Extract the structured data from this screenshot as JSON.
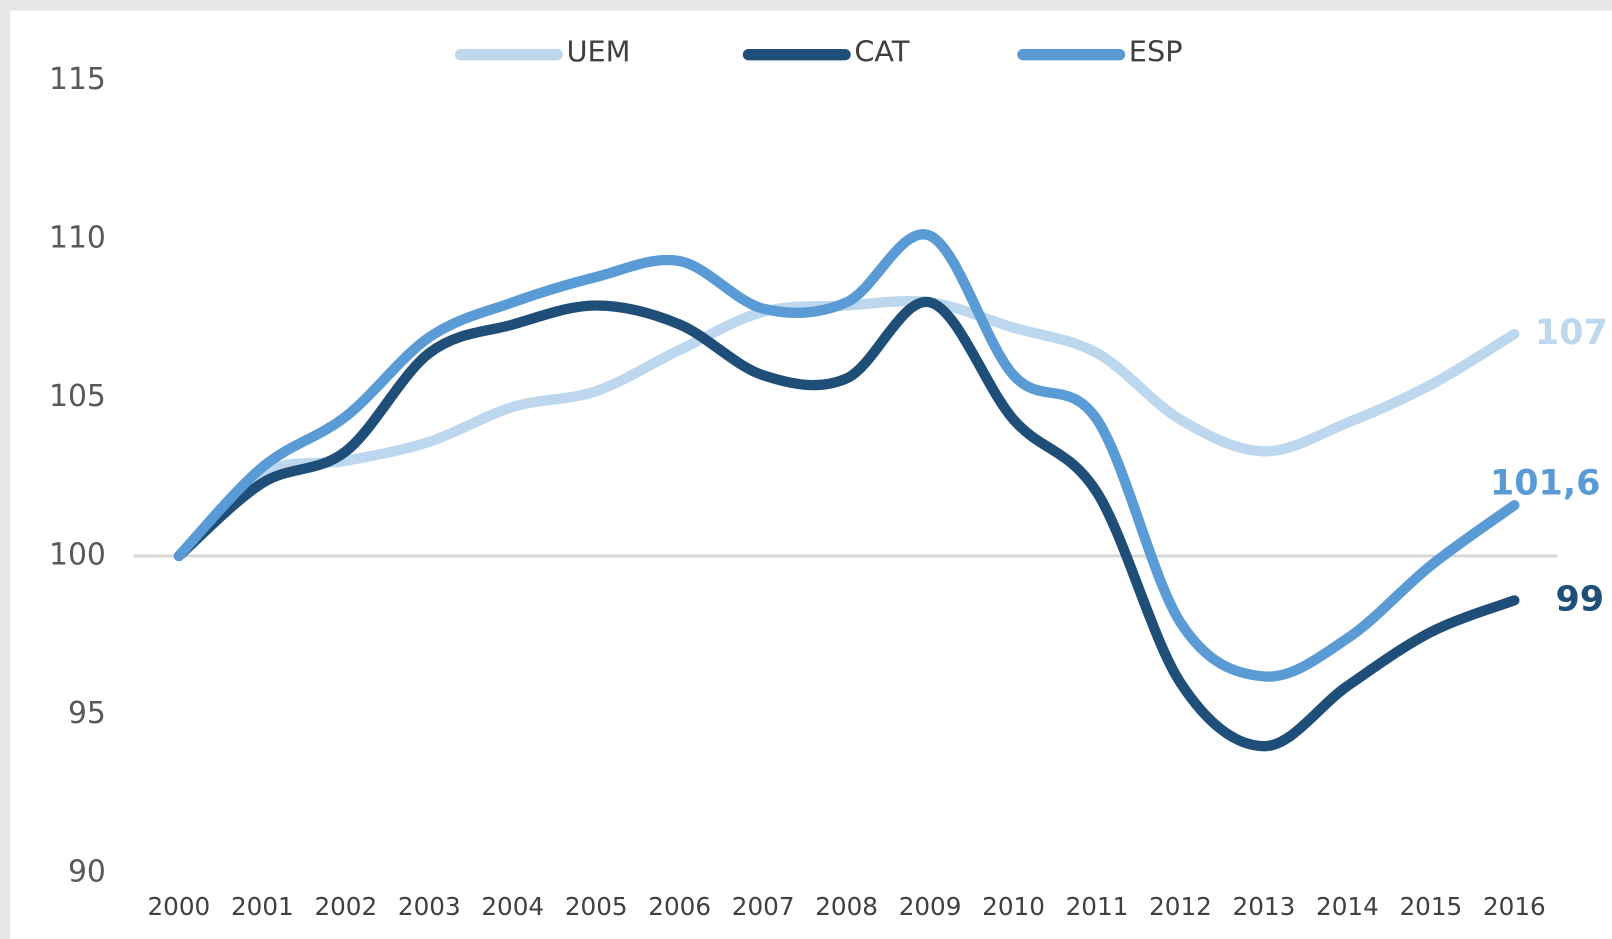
{
  "chart_data": {
    "type": "line",
    "categories": [
      "2000",
      "2001",
      "2002",
      "2003",
      "2004",
      "2005",
      "2006",
      "2007",
      "2008",
      "2009",
      "2010",
      "2011",
      "2012",
      "2013",
      "2014",
      "2015",
      "2016"
    ],
    "series": [
      {
        "name": "UEM",
        "color": "#bdd7ee",
        "values": [
          100,
          102.6,
          103.0,
          103.6,
          104.7,
          105.2,
          106.5,
          107.7,
          107.9,
          108.0,
          107.2,
          106.4,
          104.3,
          103.3,
          104.2,
          105.4,
          107
        ],
        "value_labels": [
          null,
          null,
          null,
          null,
          null,
          null,
          null,
          null,
          null,
          null,
          null,
          null,
          null,
          null,
          null,
          null,
          "107"
        ]
      },
      {
        "name": "CAT",
        "color": "#1f4e79",
        "values": [
          100,
          102.3,
          103.3,
          106.4,
          107.3,
          107.9,
          107.3,
          105.7,
          105.6,
          108.0,
          104.3,
          102.0,
          96.0,
          94.0,
          95.9,
          97.6,
          98.6
        ],
        "value_labels": [
          null,
          null,
          null,
          null,
          null,
          null,
          null,
          null,
          null,
          null,
          null,
          null,
          null,
          null,
          null,
          null,
          "99"
        ]
      },
      {
        "name": "ESP",
        "color": "#5b9bd5",
        "values": [
          100,
          102.8,
          104.4,
          106.9,
          108.0,
          108.8,
          109.3,
          107.8,
          108.0,
          110.1,
          105.7,
          104.3,
          97.9,
          96.2,
          97.4,
          99.7,
          101.6
        ],
        "value_labels": [
          null,
          null,
          null,
          null,
          null,
          null,
          null,
          null,
          null,
          null,
          null,
          null,
          null,
          null,
          null,
          null,
          "101,6"
        ]
      }
    ],
    "ylim": [
      90,
      115
    ],
    "yticks": [
      90,
      95,
      100,
      105,
      110,
      115
    ],
    "reference_line": 100,
    "legend": "top"
  }
}
